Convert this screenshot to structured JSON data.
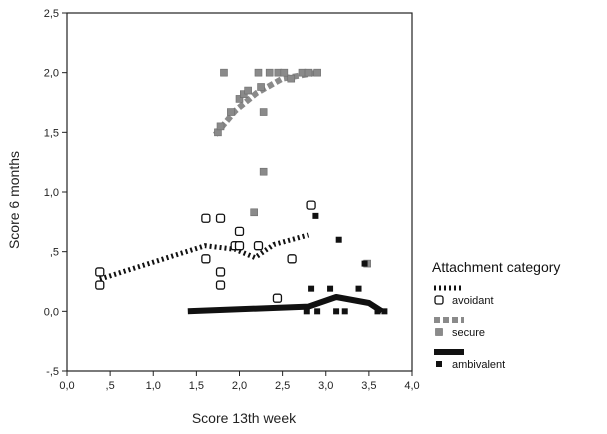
{
  "chart_data": {
    "type": "scatter",
    "xlabel": "Score 13th week",
    "ylabel": "Score 6 months",
    "xlim": [
      0.0,
      4.0
    ],
    "ylim": [
      -0.5,
      2.5
    ],
    "x_ticks": [
      {
        "value": 0.0,
        "label": "0,0"
      },
      {
        "value": 0.5,
        "label": ",5"
      },
      {
        "value": 1.0,
        "label": "1,0"
      },
      {
        "value": 1.5,
        "label": "1,5"
      },
      {
        "value": 2.0,
        "label": "2,0"
      },
      {
        "value": 2.5,
        "label": "2,5"
      },
      {
        "value": 3.0,
        "label": "3,0"
      },
      {
        "value": 3.5,
        "label": "3,5"
      },
      {
        "value": 4.0,
        "label": "4,0"
      }
    ],
    "y_ticks": [
      {
        "value": -0.5,
        "label": "-,5"
      },
      {
        "value": 0.0,
        "label": "0,0"
      },
      {
        "value": 0.5,
        "label": ",5"
      },
      {
        "value": 1.0,
        "label": "1,0"
      },
      {
        "value": 1.5,
        "label": "1,5"
      },
      {
        "value": 2.0,
        "label": "2,0"
      },
      {
        "value": 2.5,
        "label": "2,5"
      }
    ],
    "grid": false,
    "legend": {
      "title": "Attachment category",
      "placement": "right"
    },
    "series": [
      {
        "name": "avoidant",
        "color": "#111111",
        "marker": "open-square",
        "line_style": "dotted",
        "points": [
          [
            0.38,
            0.33
          ],
          [
            0.38,
            0.22
          ],
          [
            1.61,
            0.78
          ],
          [
            1.61,
            0.44
          ],
          [
            1.78,
            0.78
          ],
          [
            1.78,
            0.33
          ],
          [
            1.78,
            0.22
          ],
          [
            1.95,
            0.55
          ],
          [
            2.0,
            0.67
          ],
          [
            2.0,
            0.55
          ],
          [
            2.22,
            0.55
          ],
          [
            2.44,
            0.11
          ],
          [
            2.61,
            0.44
          ],
          [
            2.83,
            0.89
          ]
        ],
        "fit_line": [
          [
            0.38,
            0.27
          ],
          [
            1.6,
            0.55
          ],
          [
            1.95,
            0.52
          ],
          [
            2.18,
            0.45
          ],
          [
            2.4,
            0.56
          ],
          [
            2.8,
            0.64
          ]
        ]
      },
      {
        "name": "secure",
        "color": "#8a8a8a",
        "marker": "grey-square",
        "line_style": "dashed",
        "points": [
          [
            1.75,
            1.5
          ],
          [
            1.78,
            1.55
          ],
          [
            1.82,
            2.0
          ],
          [
            1.9,
            1.67
          ],
          [
            2.0,
            1.78
          ],
          [
            2.05,
            1.82
          ],
          [
            2.1,
            1.85
          ],
          [
            2.17,
            0.83
          ],
          [
            2.22,
            2.0
          ],
          [
            2.25,
            1.88
          ],
          [
            2.28,
            1.67
          ],
          [
            2.28,
            1.17
          ],
          [
            2.35,
            2.0
          ],
          [
            2.45,
            2.0
          ],
          [
            2.52,
            2.0
          ],
          [
            2.6,
            1.95
          ],
          [
            2.73,
            2.0
          ],
          [
            2.8,
            2.0
          ],
          [
            2.9,
            2.0
          ],
          [
            3.48,
            0.4
          ]
        ],
        "fit_line": [
          [
            1.72,
            1.48
          ],
          [
            1.95,
            1.68
          ],
          [
            2.2,
            1.83
          ],
          [
            2.5,
            1.95
          ],
          [
            2.9,
            2.0
          ]
        ]
      },
      {
        "name": "ambivalent",
        "color": "#111111",
        "marker": "filled-square",
        "line_style": "solid-thick",
        "points": [
          [
            2.78,
            0.0
          ],
          [
            2.83,
            0.19
          ],
          [
            2.88,
            0.8
          ],
          [
            2.9,
            0.0
          ],
          [
            3.05,
            0.19
          ],
          [
            3.12,
            0.0
          ],
          [
            3.15,
            0.6
          ],
          [
            3.22,
            0.0
          ],
          [
            3.38,
            0.19
          ],
          [
            3.45,
            0.4
          ],
          [
            3.6,
            0.0
          ],
          [
            3.68,
            0.0
          ]
        ],
        "fit_line": [
          [
            1.4,
            0.0
          ],
          [
            2.8,
            0.04
          ],
          [
            3.12,
            0.12
          ],
          [
            3.5,
            0.07
          ],
          [
            3.65,
            0.0
          ]
        ]
      }
    ]
  }
}
